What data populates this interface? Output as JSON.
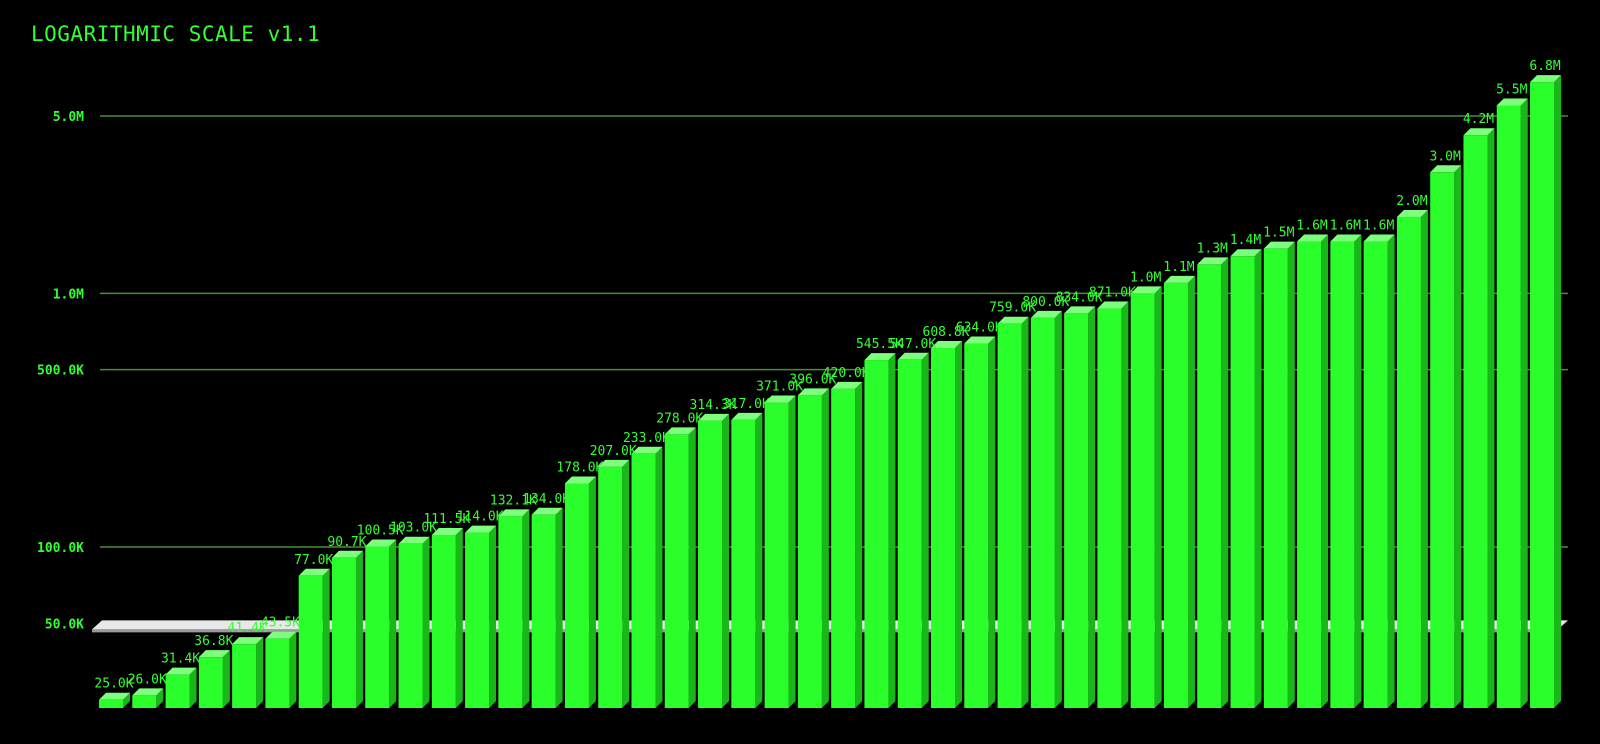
{
  "chart_data": {
    "type": "bar",
    "title": "LOGARITHMIC SCALE v1.1",
    "xlabel": "",
    "ylabel": "",
    "yscale": "log",
    "ylim": [
      25000,
      6800000
    ],
    "yticks": [
      {
        "value": 5000000,
        "label": "5.0M"
      },
      {
        "value": 1000000,
        "label": "1.0M"
      },
      {
        "value": 500000,
        "label": "500.0K"
      },
      {
        "value": 100000,
        "label": "100.0K"
      },
      {
        "value": 50000,
        "label": "50.0K"
      }
    ],
    "grid": true,
    "legend": "none",
    "colors": {
      "background": "#000000",
      "bar": "#2bff2b",
      "bar_side": "#18b818",
      "bar_top": "#7dff7d",
      "text": "#33ff33",
      "grid": "#4a8c3a",
      "floor": "#e8e8e8"
    },
    "values": [
      25000,
      26000,
      31400,
      36800,
      41400,
      43500,
      77000,
      90700,
      100500,
      103000,
      111500,
      114000,
      132100,
      134000,
      178000,
      207000,
      233000,
      278000,
      314300,
      317000,
      371000,
      396000,
      420000,
      545500,
      547000,
      608800,
      634000,
      759000,
      800000,
      834000,
      871000,
      1000000,
      1100000,
      1300000,
      1400000,
      1500000,
      1600000,
      1600000,
      1600000,
      2000000,
      3000000,
      4200000,
      5500000,
      6800000
    ],
    "labels": [
      "25.0K",
      "26.0K",
      "31.4K",
      "36.8K",
      "41.4K",
      "43.5K",
      "77.0K",
      "90.7K",
      "100.5K",
      "103.0K",
      "111.5K",
      "114.0K",
      "132.1K",
      "134.0K",
      "178.0K",
      "207.0K",
      "233.0K",
      "278.0K",
      "314.3K",
      "317.0K",
      "371.0K",
      "396.0K",
      "420.0K",
      "545.5K",
      "547.0K",
      "608.8K",
      "634.0K",
      "759.0K",
      "800.0K",
      "834.0K",
      "871.0K",
      "1.0M",
      "1.1M",
      "1.3M",
      "1.4M",
      "1.5M",
      "1.6M",
      "1.6M",
      "1.6M",
      "2.0M",
      "3.0M",
      "4.2M",
      "5.5M",
      "6.8M"
    ]
  }
}
